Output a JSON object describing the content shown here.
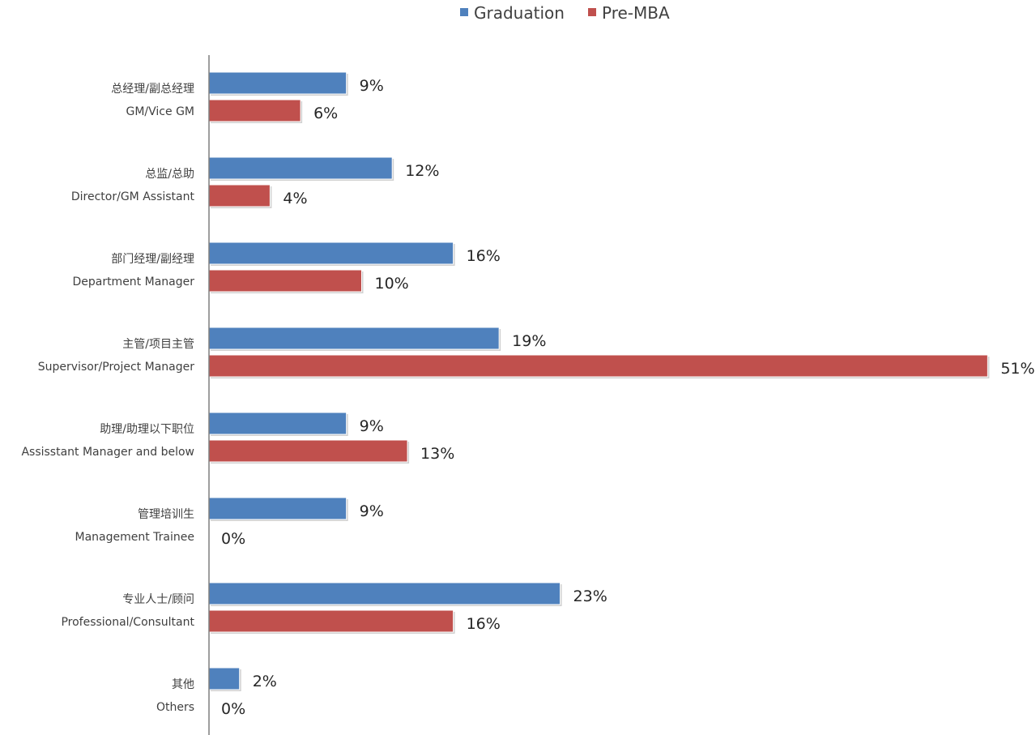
{
  "chart_data": {
    "type": "bar",
    "orientation": "horizontal",
    "legend_position": "top-center",
    "grid": false,
    "xlim": [
      0,
      51
    ],
    "title": "",
    "xlabel": "",
    "ylabel": "",
    "categories": [
      {
        "cn": "总经理/副总经理",
        "en": "GM/Vice GM"
      },
      {
        "cn": "总监/总助",
        "en": "Director/GM Assistant"
      },
      {
        "cn": "部门经理/副经理",
        "en": "Department Manager"
      },
      {
        "cn": "主管/项目主管",
        "en": "Supervisor/Project Manager"
      },
      {
        "cn": "助理/助理以下职位",
        "en": "Assisstant Manager and below"
      },
      {
        "cn": "管理培训生",
        "en": "Management Trainee"
      },
      {
        "cn": "专业人士/顾问",
        "en": "Professional/Consultant"
      },
      {
        "cn": "其他",
        "en": "Others"
      }
    ],
    "series": [
      {
        "name": "Graduation",
        "color": "#4f81bd",
        "values": [
          9,
          12,
          16,
          19,
          9,
          9,
          23,
          2
        ]
      },
      {
        "name": "Pre-MBA",
        "color": "#c0504d",
        "values": [
          6,
          4,
          10,
          51,
          13,
          0,
          16,
          0
        ]
      }
    ],
    "value_suffix": "%"
  }
}
